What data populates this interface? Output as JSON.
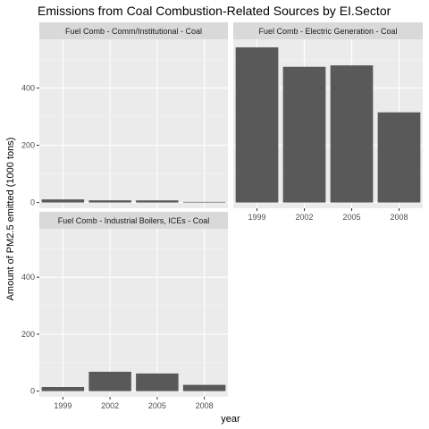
{
  "chart_data": {
    "type": "bar",
    "title": "Emissions from Coal Combustion-Related Sources by EI.Sector",
    "xlabel": "year",
    "ylabel": "Amount of PM2.5 emitted (1000 tons)",
    "categories": [
      "1999",
      "2002",
      "2005",
      "2008"
    ],
    "ylim": [
      -20,
      570
    ],
    "yticks": [
      0,
      200,
      400
    ],
    "grid": true,
    "facets": [
      {
        "name": "Fuel Comb - Comm/Institutional - Coal",
        "values": [
          10.8,
          7.6,
          7.4,
          2.2
        ]
      },
      {
        "name": "Fuel Comb - Electric Generation - Coal",
        "values": [
          542,
          474,
          479,
          315
        ]
      },
      {
        "name": "Fuel Comb - Industrial Boilers, ICEs - Coal",
        "values": [
          14.5,
          68,
          62,
          22
        ]
      }
    ]
  },
  "colors": {
    "panel_bg": "#ebebeb",
    "strip_bg": "#d9d9d9",
    "grid_major": "#ffffff",
    "bar": "#595959"
  }
}
